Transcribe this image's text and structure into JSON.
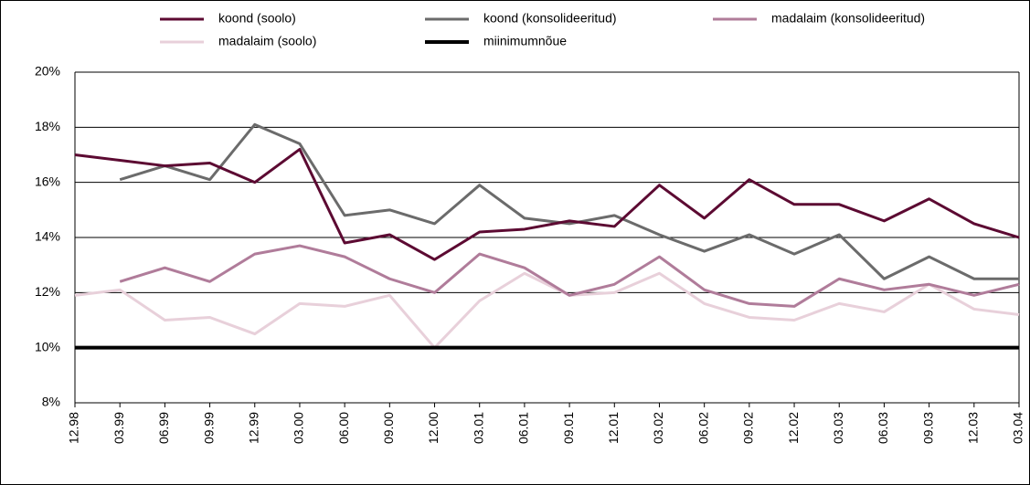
{
  "chart_data": {
    "type": "line",
    "categories": [
      "12.98",
      "03.99",
      "06.99",
      "09.99",
      "12.99",
      "03.00",
      "06.00",
      "09.00",
      "12.00",
      "03.01",
      "06.01",
      "09.01",
      "12.01",
      "03.02",
      "06.02",
      "09.02",
      "12.02",
      "03.03",
      "06.03",
      "09.03",
      "12.03",
      "03.04"
    ],
    "series": [
      {
        "name": "koond (soolo)",
        "color": "#5c0a32",
        "width": 3,
        "values": [
          17.0,
          16.8,
          16.6,
          16.7,
          16.0,
          17.2,
          13.8,
          14.1,
          13.2,
          14.2,
          14.3,
          14.6,
          14.4,
          15.9,
          14.7,
          16.1,
          15.2,
          15.2,
          14.6,
          15.4,
          14.5,
          14.0
        ]
      },
      {
        "name": "koond (konsolideeritud)",
        "color": "#6b6b6b",
        "width": 3,
        "values": [
          null,
          16.1,
          16.6,
          16.1,
          18.1,
          17.4,
          14.8,
          15.0,
          14.5,
          15.9,
          14.7,
          14.5,
          14.8,
          14.1,
          13.5,
          14.1,
          13.4,
          14.1,
          12.5,
          13.3,
          12.5,
          12.5
        ]
      },
      {
        "name": "madalaim (konsolideeritud)",
        "color": "#b07c9a",
        "width": 3,
        "values": [
          null,
          12.4,
          12.9,
          12.4,
          13.4,
          13.7,
          13.3,
          12.5,
          12.0,
          13.4,
          12.9,
          11.9,
          12.3,
          13.3,
          12.1,
          11.6,
          11.5,
          12.5,
          12.1,
          12.3,
          11.9,
          12.3
        ]
      },
      {
        "name": "madalaim (soolo)",
        "color": "#e8d0da",
        "width": 3,
        "values": [
          11.9,
          12.1,
          11.0,
          11.1,
          10.5,
          11.6,
          11.5,
          11.9,
          10.0,
          11.7,
          12.7,
          11.9,
          12.0,
          12.7,
          11.6,
          11.1,
          11.0,
          11.6,
          11.3,
          12.3,
          11.4,
          11.2
        ]
      },
      {
        "name": "miinimumnõue",
        "color": "#000000",
        "width": 4,
        "values": [
          10,
          10,
          10,
          10,
          10,
          10,
          10,
          10,
          10,
          10,
          10,
          10,
          10,
          10,
          10,
          10,
          10,
          10,
          10,
          10,
          10,
          10
        ]
      }
    ],
    "ylim": [
      8,
      20
    ],
    "yticks": [
      {
        "value": 8,
        "label": "8%"
      },
      {
        "value": 10,
        "label": "10%"
      },
      {
        "value": 12,
        "label": "12%"
      },
      {
        "value": 14,
        "label": "14%"
      },
      {
        "value": 16,
        "label": "16%"
      },
      {
        "value": 18,
        "label": "18%"
      },
      {
        "value": 20,
        "label": "20%"
      }
    ],
    "grid": true,
    "legend": "top"
  }
}
